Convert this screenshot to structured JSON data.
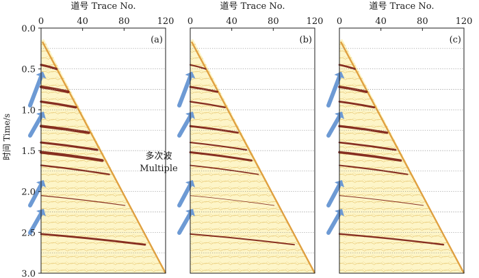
{
  "figure": {
    "x_axis_title": "道号 Trace No.",
    "x_ticks": [
      "0",
      "40",
      "80",
      "120"
    ],
    "y_ticks": [
      "0.0",
      "0.5",
      "1.0",
      "1.5",
      "2.0",
      "2.5",
      "3.0"
    ],
    "y_axis_title": "时间 Time/s",
    "annotation": {
      "line1": "多次波",
      "line2": "Multiple"
    },
    "panels": [
      {
        "label": "(a)"
      },
      {
        "label": "(b)"
      },
      {
        "label": "(c)"
      }
    ],
    "colors": {
      "background": "#fdf5c8",
      "event": "#7a1a10",
      "arrow": "#6d9ad4",
      "gridline": "#808080"
    }
  }
}
